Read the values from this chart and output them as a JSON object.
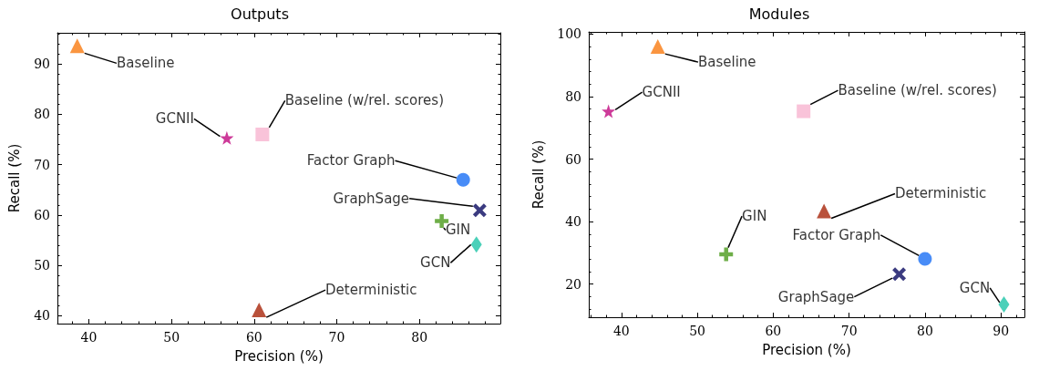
{
  "chart_data": [
    {
      "type": "scatter",
      "title": "Outputs",
      "xlabel": "Precision (%)",
      "ylabel": "Recall (%)",
      "xlim": [
        36.2,
        89.8
      ],
      "ylim": [
        38.4,
        96.2
      ],
      "xticks": [
        40,
        50,
        60,
        70,
        80
      ],
      "yticks": [
        40,
        50,
        60,
        70,
        80,
        90
      ],
      "series": [
        {
          "name": "Baseline",
          "color": "#f97a10",
          "marker": "triangle",
          "x": [
            38.6
          ],
          "values": [
            93.6
          ]
        },
        {
          "name": "Baseline (w/rel. scores)",
          "color": "#f8b4cf",
          "marker": "square",
          "x": [
            61.0
          ],
          "values": [
            76.0
          ]
        },
        {
          "name": "GCNII",
          "color": "#c0097f",
          "marker": "star",
          "x": [
            56.7
          ],
          "values": [
            75.3
          ]
        },
        {
          "name": "Factor Graph",
          "color": "#1a6ff5",
          "marker": "circle",
          "x": [
            85.3
          ],
          "values": [
            67.0
          ]
        },
        {
          "name": "GraphSage",
          "color": "#0a0a60",
          "marker": "cross",
          "x": [
            87.3
          ],
          "values": [
            60.9
          ]
        },
        {
          "name": "GIN",
          "color": "#4a9a1a",
          "marker": "plus",
          "x": [
            82.7
          ],
          "values": [
            58.8
          ]
        },
        {
          "name": "GCN",
          "color": "#1ec4a8",
          "marker": "diamond",
          "x": [
            86.9
          ],
          "values": [
            54.1
          ]
        },
        {
          "name": "Deterministic",
          "color": "#a8260a",
          "marker": "triangle",
          "x": [
            60.6
          ],
          "values": [
            41.1
          ]
        }
      ]
    },
    {
      "type": "scatter",
      "title": "Modules",
      "xlabel": "Precision (%)",
      "ylabel": "Recall (%)",
      "xlim": [
        35.7,
        93.1
      ],
      "ylim": [
        9.4,
        100.7
      ],
      "xticks": [
        40,
        50,
        60,
        70,
        80,
        90
      ],
      "yticks": [
        20,
        40,
        60,
        80,
        100
      ],
      "series": [
        {
          "name": "Baseline",
          "color": "#f97a10",
          "marker": "triangle",
          "x": [
            44.8
          ],
          "values": [
            96.0
          ]
        },
        {
          "name": "Baseline (w/rel. scores)",
          "color": "#f8b4cf",
          "marker": "square",
          "x": [
            64.0
          ],
          "values": [
            75.3
          ]
        },
        {
          "name": "GCNII",
          "color": "#c0097f",
          "marker": "star",
          "x": [
            38.3
          ],
          "values": [
            75.3
          ]
        },
        {
          "name": "Factor Graph",
          "color": "#1a6ff5",
          "marker": "circle",
          "x": [
            80.0
          ],
          "values": [
            28.1
          ]
        },
        {
          "name": "GraphSage",
          "color": "#0a0a60",
          "marker": "cross",
          "x": [
            76.6
          ],
          "values": [
            23.2
          ]
        },
        {
          "name": "GIN",
          "color": "#4a9a1a",
          "marker": "plus",
          "x": [
            53.8
          ],
          "values": [
            29.5
          ]
        },
        {
          "name": "GCN",
          "color": "#1ec4a8",
          "marker": "diamond",
          "x": [
            90.4
          ],
          "values": [
            13.5
          ]
        },
        {
          "name": "Deterministic",
          "color": "#a8260a",
          "marker": "triangle",
          "x": [
            66.7
          ],
          "values": [
            43.4
          ]
        }
      ]
    }
  ]
}
